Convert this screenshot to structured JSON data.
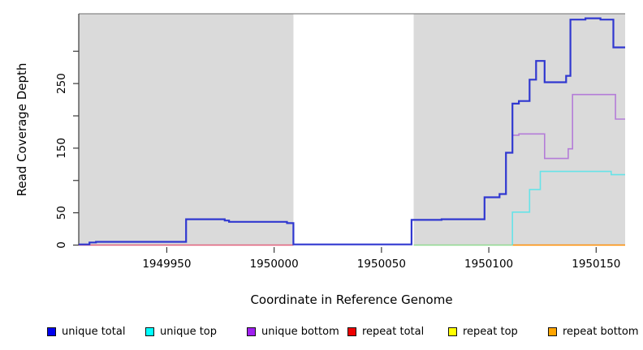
{
  "chart_data": {
    "type": "line",
    "subtype": "step-coverage",
    "title": "",
    "xlabel": "Coordinate in Reference Genome",
    "ylabel": "Read Coverage Depth",
    "x_range": [
      1949909,
      1950163.5
    ],
    "y_range": [
      0,
      358
    ],
    "x_ticks": [
      1949950,
      1950000,
      1950050,
      1950100,
      1950150
    ],
    "y_ticks_all": [
      0,
      50,
      100,
      150,
      200,
      250,
      300
    ],
    "y_ticks_labeled": [
      0,
      50,
      150,
      250
    ],
    "grid": false,
    "panel_bg_color": "#dadada",
    "panel_bg_regions": [
      [
        1949909,
        1950009
      ],
      [
        1950065,
        1950163.5
      ]
    ],
    "white_gap_region": [
      1950009,
      1950065
    ],
    "zero_baseline_segments": [
      {
        "series": "repeat total",
        "color": "#e0607c",
        "x_start": 1949909,
        "x_end": 1950009,
        "value": 0
      },
      {
        "series": "repeat top over unique top",
        "color": "#8fd98f",
        "x_start": 1950065,
        "x_end": 1950111,
        "value": 0
      },
      {
        "series": "repeat bottom",
        "color": "#ff8c00",
        "x_start": 1950111,
        "x_end": 1950163.5,
        "value": 0
      }
    ],
    "series": [
      {
        "name": "unique top",
        "color": "#67e3e8",
        "width": 1.6,
        "steps": [
          [
            1950111,
            0
          ],
          [
            1950111,
            51
          ],
          [
            1950119,
            86
          ],
          [
            1950124,
            114
          ],
          [
            1950157,
            109
          ],
          [
            1950163.5,
            109
          ]
        ]
      },
      {
        "name": "unique bottom",
        "color": "#b47cd8",
        "width": 1.6,
        "steps": [
          [
            1950009,
            1
          ],
          [
            1950065,
            null
          ],
          [
            1950111,
            170
          ],
          [
            1950114,
            172
          ],
          [
            1950126,
            134
          ],
          [
            1950136,
            134
          ],
          [
            1950137,
            149
          ],
          [
            1950139,
            233
          ],
          [
            1950158,
            233
          ],
          [
            1950159,
            195
          ],
          [
            1950163.5,
            195
          ]
        ]
      },
      {
        "name": "unique total",
        "color": "#3038d0",
        "width": 2.2,
        "steps": [
          [
            1949909,
            1
          ],
          [
            1949914,
            4
          ],
          [
            1949917,
            5
          ],
          [
            1949959,
            40
          ],
          [
            1949977,
            38
          ],
          [
            1949979,
            36
          ],
          [
            1950006,
            34
          ],
          [
            1950009,
            1
          ],
          [
            1950064,
            39
          ],
          [
            1950078,
            40
          ],
          [
            1950098,
            74
          ],
          [
            1950105,
            79
          ],
          [
            1950108,
            143
          ],
          [
            1950111,
            219
          ],
          [
            1950114,
            223
          ],
          [
            1950119,
            256
          ],
          [
            1950122,
            285
          ],
          [
            1950126,
            252
          ],
          [
            1950136,
            262
          ],
          [
            1950138,
            349
          ],
          [
            1950145,
            351
          ],
          [
            1950152,
            349
          ],
          [
            1950158,
            306
          ],
          [
            1950163.5,
            306
          ]
        ]
      },
      {
        "name": "repeat total",
        "constant_value": 0
      },
      {
        "name": "repeat top",
        "constant_value": 0
      },
      {
        "name": "repeat bottom",
        "constant_value": 0
      }
    ]
  },
  "legend": [
    {
      "label": "unique total",
      "color": "#0000ee"
    },
    {
      "label": "unique top",
      "color": "#00ffff"
    },
    {
      "label": "unique bottom",
      "color": "#a020f0"
    },
    {
      "label": "repeat total",
      "color": "#ee0000"
    },
    {
      "label": "repeat top",
      "color": "#ffff00"
    },
    {
      "label": "repeat bottom",
      "color": "#ffa500"
    }
  ],
  "frame": {
    "top_line_color": "#888888",
    "axis_color": "#3a3a3a",
    "tick_label_color": "#000000"
  }
}
